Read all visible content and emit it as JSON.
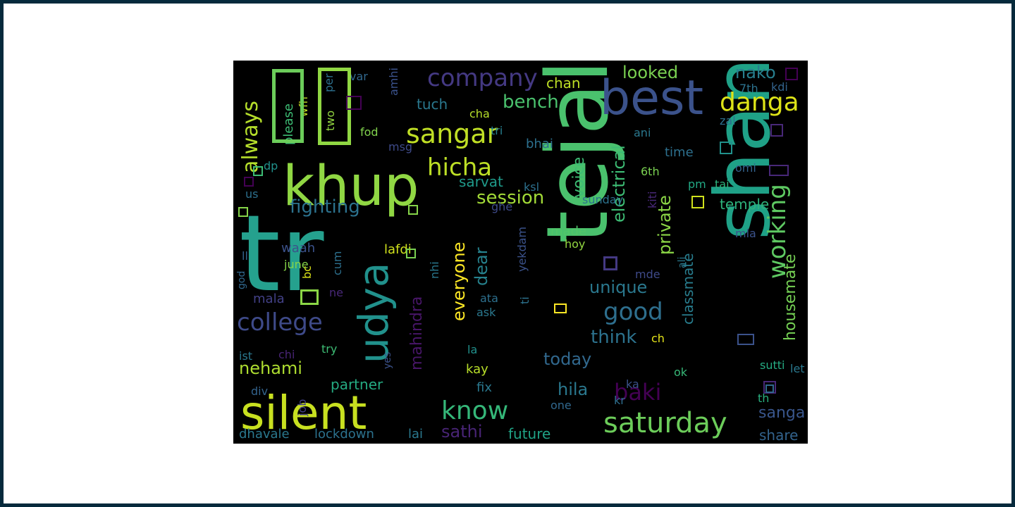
{
  "wordcloud": {
    "background": "#000000",
    "frame_color": "#062a3c",
    "canvas_color": "#ffffff",
    "words": [
      {
        "text": "tr",
        "color": "#25a18e"
      },
      {
        "text": "tejal",
        "color": "#4ac16d"
      },
      {
        "text": "shant",
        "color": "#1fa187"
      },
      {
        "text": "khup",
        "color": "#90d743"
      },
      {
        "text": "silent",
        "color": "#c8e020"
      },
      {
        "text": "best",
        "color": "#3b528b"
      },
      {
        "text": "udya",
        "color": "#21918c"
      },
      {
        "text": "saturday",
        "color": "#6ccd5a"
      },
      {
        "text": "sangar",
        "color": "#c0df25"
      },
      {
        "text": "company",
        "color": "#443983"
      },
      {
        "text": "hicha",
        "color": "#bddf26"
      },
      {
        "text": "danga",
        "color": "#dde318"
      },
      {
        "text": "college",
        "color": "#3e4a89"
      },
      {
        "text": "know",
        "color": "#35b779"
      },
      {
        "text": "good",
        "color": "#2e6f8e"
      },
      {
        "text": "working",
        "color": "#5ec962"
      },
      {
        "text": "always",
        "color": "#b5de2b"
      },
      {
        "text": "baki",
        "color": "#440154"
      },
      {
        "text": "fighting",
        "color": "#2c728e"
      },
      {
        "text": "session",
        "color": "#a2da37"
      },
      {
        "text": "bench",
        "color": "#4ac16d"
      },
      {
        "text": "looked",
        "color": "#7ad151"
      },
      {
        "text": "nako",
        "color": "#277f8e"
      },
      {
        "text": "nehami",
        "color": "#addc30"
      },
      {
        "text": "unique",
        "color": "#2a788e"
      },
      {
        "text": "think",
        "color": "#2c728e"
      },
      {
        "text": "electrical",
        "color": "#3dbc74"
      },
      {
        "text": "voice",
        "color": "#3dbc74"
      },
      {
        "text": "housemate",
        "color": "#75d054"
      },
      {
        "text": "classmate",
        "color": "#287d8e"
      },
      {
        "text": "private",
        "color": "#8bd646"
      },
      {
        "text": "everyone",
        "color": "#fde725"
      },
      {
        "text": "mahindra",
        "color": "#481668"
      },
      {
        "text": "dear",
        "color": "#26828e"
      },
      {
        "text": "today",
        "color": "#31688e"
      },
      {
        "text": "hila",
        "color": "#2a788e"
      },
      {
        "text": "sanga",
        "color": "#39568c"
      },
      {
        "text": "sathi",
        "color": "#482475"
      },
      {
        "text": "partner",
        "color": "#25ab82"
      },
      {
        "text": "future",
        "color": "#20a386"
      },
      {
        "text": "dhavale",
        "color": "#2a788e"
      },
      {
        "text": "lockdown",
        "color": "#2c728e"
      },
      {
        "text": "lai",
        "color": "#2a788e"
      },
      {
        "text": "share",
        "color": "#33638d"
      },
      {
        "text": "temple",
        "color": "#2eb37c"
      },
      {
        "text": "lafdi",
        "color": "#d0e11c"
      },
      {
        "text": "sarvat",
        "color": "#1f9a8a"
      },
      {
        "text": "chan",
        "color": "#bddf26"
      },
      {
        "text": "tuch",
        "color": "#2a788e"
      },
      {
        "text": "bhai",
        "color": "#2d708e"
      },
      {
        "text": "made",
        "color": "#52c569"
      },
      {
        "text": "time",
        "color": "#2d708e"
      },
      {
        "text": "sunday",
        "color": "#2c728e"
      },
      {
        "text": "waah",
        "color": "#3b528b"
      },
      {
        "text": "june",
        "color": "#86d549"
      },
      {
        "text": "mala",
        "color": "#424086"
      },
      {
        "text": "ask",
        "color": "#2a788e"
      },
      {
        "text": "ata",
        "color": "#2d708e"
      },
      {
        "text": "try",
        "color": "#3dbc74"
      },
      {
        "text": "kay",
        "color": "#b8de29"
      },
      {
        "text": "fix",
        "color": "#2a788e"
      },
      {
        "text": "la",
        "color": "#21918c"
      },
      {
        "text": "one",
        "color": "#31688e"
      },
      {
        "text": "kr",
        "color": "#2e6f8e"
      },
      {
        "text": "ka",
        "color": "#3b528b"
      },
      {
        "text": "ok",
        "color": "#37b878"
      },
      {
        "text": "th",
        "color": "#29af7f"
      },
      {
        "text": "let",
        "color": "#2a788e"
      },
      {
        "text": "sutti",
        "color": "#25ab82"
      },
      {
        "text": "pm",
        "color": "#22a884"
      },
      {
        "text": "tai",
        "color": "#2eb37c"
      },
      {
        "text": "omi",
        "color": "#33638d"
      },
      {
        "text": "mla",
        "color": "#3b528b"
      },
      {
        "text": "ali",
        "color": "#2a788e"
      },
      {
        "text": "mde",
        "color": "#3e4a89"
      },
      {
        "text": "6th",
        "color": "#7ad151"
      },
      {
        "text": "kiti",
        "color": "#482878"
      },
      {
        "text": "hoy",
        "color": "#93d741"
      },
      {
        "text": "ch",
        "color": "#e5e419"
      },
      {
        "text": "yekdam",
        "color": "#3b528b"
      },
      {
        "text": "ti",
        "color": "#2c728e"
      },
      {
        "text": "ksl",
        "color": "#2d708e"
      },
      {
        "text": "ghe",
        "color": "#3e4a89"
      },
      {
        "text": "tri",
        "color": "#277f8e"
      },
      {
        "text": "cha",
        "color": "#b5de2b"
      },
      {
        "text": "msg",
        "color": "#3e4a89"
      },
      {
        "text": "fod",
        "color": "#81d34d"
      },
      {
        "text": "two",
        "color": "#93d741"
      },
      {
        "text": "per",
        "color": "#2d708e"
      },
      {
        "text": "var",
        "color": "#31688e"
      },
      {
        "text": "please",
        "color": "#3dbc74"
      },
      {
        "text": "wfh",
        "color": "#c2df23"
      },
      {
        "text": "amhi",
        "color": "#3b528b"
      },
      {
        "text": "dp",
        "color": "#21918c"
      },
      {
        "text": "us",
        "color": "#2d708e"
      },
      {
        "text": "ll",
        "color": "#33638d"
      },
      {
        "text": "god",
        "color": "#31688e"
      },
      {
        "text": "bc",
        "color": "#dde318"
      },
      {
        "text": "cum",
        "color": "#2d708e"
      },
      {
        "text": "ne",
        "color": "#482878"
      },
      {
        "text": "nhi",
        "color": "#2a788e"
      },
      {
        "text": "ist",
        "color": "#2a788e"
      },
      {
        "text": "chi",
        "color": "#482475"
      },
      {
        "text": "yes",
        "color": "#3b528b"
      },
      {
        "text": "div",
        "color": "#33638d"
      },
      {
        "text": "job",
        "color": "#424086"
      },
      {
        "text": "7th",
        "color": "#2c728e"
      },
      {
        "text": "kdi",
        "color": "#33638d"
      },
      {
        "text": "zal",
        "color": "#2d708e"
      },
      {
        "text": "ani",
        "color": "#2a788e"
      }
    ]
  }
}
